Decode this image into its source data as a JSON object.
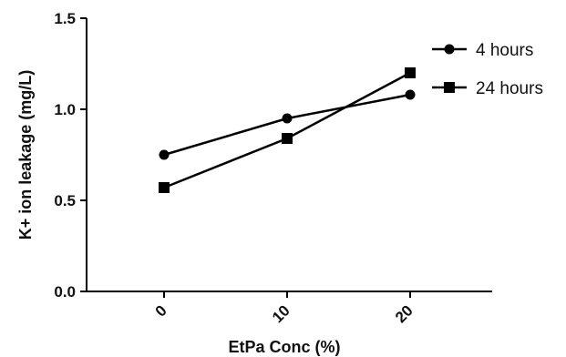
{
  "chart_data": {
    "type": "line",
    "x": [
      0,
      10,
      20
    ],
    "x_tick_labels": [
      "0",
      "10",
      "20"
    ],
    "xlabel": "EtPa Conc (%)",
    "ylabel": "K+ ion leakage (mg/L)",
    "ylim": [
      0,
      1.5
    ],
    "y_ticks": [
      0,
      0.5,
      1.0,
      1.5
    ],
    "y_tick_labels": [
      "0.0",
      "0.5",
      "1.0",
      "1.5"
    ],
    "series": [
      {
        "name": "4 hours",
        "marker": "circle",
        "values": [
          0.75,
          0.95,
          1.08
        ]
      },
      {
        "name": "24 hours",
        "marker": "square",
        "values": [
          0.57,
          0.84,
          1.2
        ]
      }
    ],
    "grid": false,
    "legend_position": "top-right",
    "colors": {
      "line": "#000000",
      "marker": "#000000",
      "text": "#111111"
    }
  }
}
